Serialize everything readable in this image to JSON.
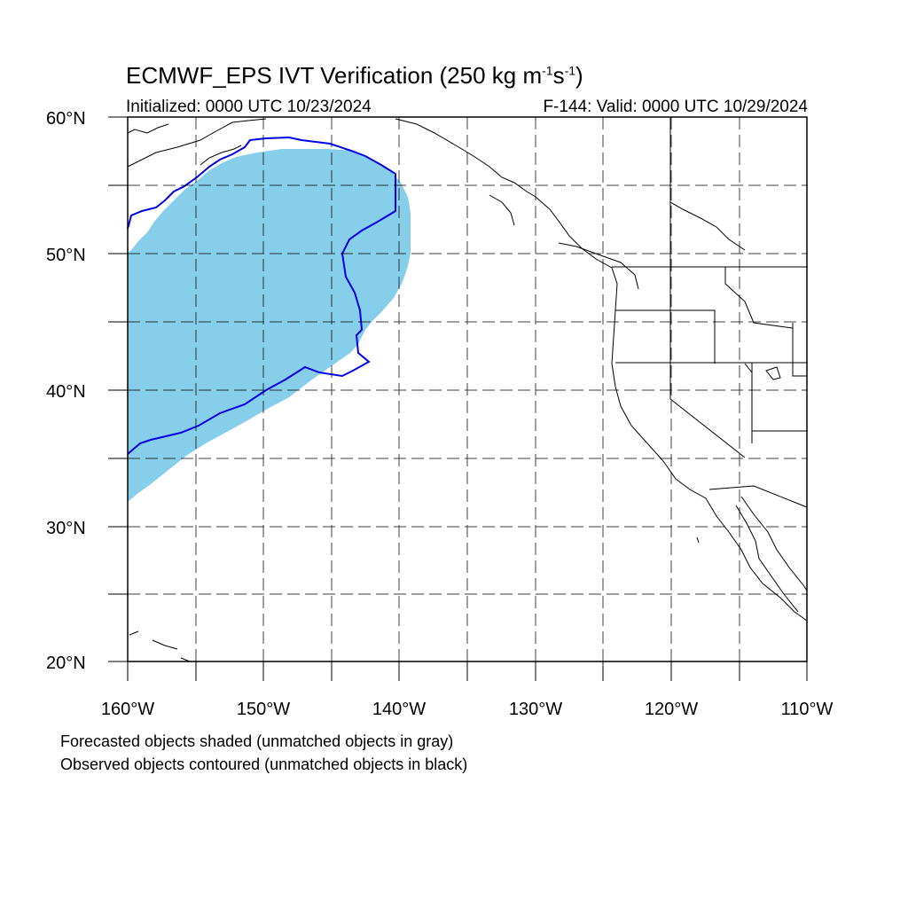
{
  "title": {
    "main": "ECMWF_EPS IVT Verification (250 kg m",
    "sup1": "-1",
    "mid": "s",
    "sup2": "-1",
    "end": ")"
  },
  "subtitle_left": "Initialized: 0000 UTC 10/23/2024",
  "subtitle_right": "F-144: Valid: 0000 UTC 10/29/2024",
  "map": {
    "lon_range": [
      -160,
      -110
    ],
    "lat_range": [
      20,
      60
    ],
    "grid": "dashed",
    "lat_labels": [
      "60°N",
      "50°N",
      "40°N",
      "30°N",
      "20°N"
    ],
    "lon_labels": [
      "160°W",
      "150°W",
      "140°W",
      "130°W",
      "120°W",
      "110°W"
    ],
    "forecast_color": "#87ceeb",
    "observed_color": "#0000ff"
  },
  "notes": [
    "Forecasted objects shaded (unmatched objects in gray)",
    "Observed objects contoured (unmatched objects in black)"
  ]
}
